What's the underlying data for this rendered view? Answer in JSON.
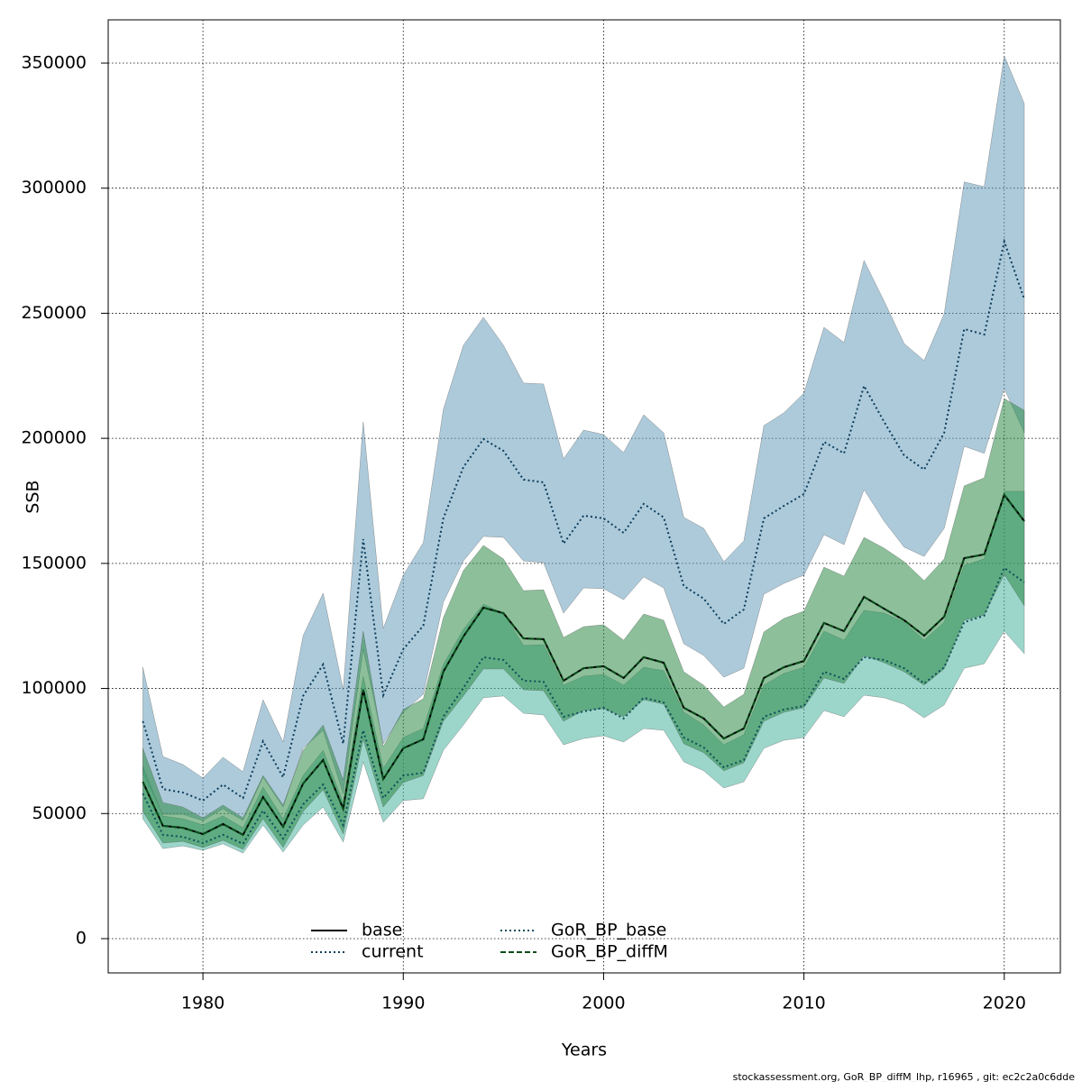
{
  "chart_data": {
    "type": "band-line",
    "x_label": "Years",
    "y_label": "SSB",
    "footer": "stockassessment.org, GoR_BP_diffM_lhp, r16965 , git: ec2c2a0c6dde",
    "x": [
      1977,
      1978,
      1979,
      1980,
      1981,
      1982,
      1983,
      1984,
      1985,
      1986,
      1987,
      1988,
      1989,
      1990,
      1991,
      1992,
      1993,
      1994,
      1995,
      1996,
      1997,
      1998,
      1999,
      2000,
      2001,
      2002,
      2003,
      2004,
      2005,
      2006,
      2007,
      2008,
      2009,
      2010,
      2011,
      2012,
      2013,
      2014,
      2015,
      2016,
      2017,
      2018,
      2019,
      2020,
      2021
    ],
    "xlim": [
      1975.27,
      2022.8
    ],
    "xticks": [
      1980,
      1990,
      2000,
      2010,
      2020
    ],
    "ylim": [
      -13700,
      367300
    ],
    "yticks": [
      0,
      50000,
      100000,
      150000,
      200000,
      250000,
      300000,
      350000
    ],
    "grid": true,
    "legend": "bottom",
    "series": [
      {
        "name": "base",
        "color": "#000000",
        "dash": "solid",
        "values": [
          62700,
          45100,
          44300,
          41800,
          45800,
          41500,
          56600,
          44700,
          62000,
          71400,
          51900,
          99500,
          63800,
          76100,
          79700,
          106700,
          120800,
          132300,
          130100,
          120000,
          119700,
          103100,
          108100,
          108900,
          104200,
          112500,
          110300,
          92300,
          88000,
          80000,
          84000,
          104200,
          108500,
          111000,
          126200,
          122900,
          136600,
          131900,
          127300,
          121100,
          128700,
          152100,
          153600,
          177400,
          166900
        ]
      },
      {
        "name": "current",
        "color": "#0b3d5c",
        "dash": "dotted",
        "band_color": "#6a9ebb",
        "values": [
          86900,
          59800,
          58400,
          55200,
          61600,
          56200,
          78900,
          64500,
          97000,
          109600,
          77900,
          159700,
          97300,
          115700,
          125100,
          168000,
          188500,
          199700,
          195000,
          183500,
          182400,
          157900,
          169100,
          168000,
          162200,
          173800,
          168400,
          141000,
          135900,
          125800,
          131600,
          168000,
          173000,
          177700,
          198600,
          194000,
          221000,
          206600,
          193200,
          187500,
          202200,
          243700,
          241500,
          278700,
          255600
        ],
        "upper": [
          108500,
          72800,
          69600,
          64200,
          72500,
          66700,
          95500,
          78600,
          121100,
          138100,
          99500,
          206600,
          124000,
          145300,
          158300,
          211600,
          237200,
          248400,
          237200,
          222100,
          221700,
          191800,
          203300,
          201500,
          194300,
          209400,
          202200,
          168400,
          164000,
          150700,
          159000,
          205100,
          210200,
          218100,
          244400,
          238300,
          271100,
          254900,
          237900,
          231100,
          249800,
          302500,
          300600,
          352900,
          333800
        ],
        "lower": [
          66000,
          49700,
          49700,
          47200,
          51900,
          47200,
          64500,
          52600,
          76100,
          83300,
          58000,
          115700,
          77900,
          90500,
          97700,
          134500,
          151000,
          160800,
          160400,
          151000,
          150300,
          130100,
          140200,
          139900,
          135500,
          144600,
          140200,
          117900,
          113200,
          104500,
          108100,
          137700,
          142000,
          145300,
          161500,
          157500,
          179500,
          166900,
          156500,
          152800,
          164000,
          196800,
          194000,
          219900,
          202200
        ]
      },
      {
        "name": "GoR_BP_base",
        "color": "#0e4f5a",
        "dash": "dotted",
        "band_color": "#4ab5a0",
        "values": [
          58000,
          41500,
          40700,
          38200,
          41500,
          37900,
          51200,
          40000,
          53700,
          61600,
          45400,
          83300,
          56200,
          65200,
          66300,
          88700,
          100200,
          112500,
          111400,
          103100,
          102700,
          88700,
          90800,
          92300,
          88000,
          96300,
          94400,
          80400,
          76400,
          68500,
          71400,
          88700,
          91600,
          93000,
          106700,
          103800,
          112500,
          111400,
          108100,
          102000,
          108500,
          126500,
          129100,
          148200,
          142400
        ],
        "upper": [
          68900,
          49000,
          47900,
          45400,
          49000,
          44300,
          60600,
          47900,
          65200,
          75300,
          54400,
          104900,
          68100,
          80400,
          84000,
          109600,
          123600,
          133700,
          130100,
          117200,
          117500,
          101300,
          104900,
          105600,
          101300,
          108500,
          107100,
          90500,
          85400,
          77500,
          81500,
          101300,
          106000,
          108500,
          122900,
          119300,
          131200,
          130100,
          126500,
          119300,
          126500,
          149200,
          151800,
          178800,
          178800
        ],
        "lower": [
          47900,
          36000,
          37100,
          35300,
          37900,
          34200,
          45400,
          34600,
          45400,
          52600,
          38600,
          70700,
          46500,
          55200,
          55900,
          75300,
          85400,
          96300,
          97000,
          90100,
          89400,
          77500,
          80000,
          81100,
          78600,
          84000,
          83300,
          70700,
          67100,
          60200,
          62700,
          76100,
          79300,
          80400,
          91200,
          88700,
          97300,
          96300,
          93700,
          88300,
          93400,
          108100,
          109900,
          122900,
          113900
        ]
      },
      {
        "name": "GoR_BP_diffM",
        "color": "#0a4d1a",
        "dash": "dashed",
        "band_color": "#2e8b47",
        "values": [
          62700,
          45100,
          44300,
          41800,
          45800,
          41500,
          56600,
          44700,
          62000,
          71400,
          51900,
          99500,
          63800,
          76100,
          79700,
          106700,
          120800,
          132300,
          130100,
          120000,
          119700,
          103100,
          108100,
          108900,
          104200,
          112500,
          110300,
          92300,
          88000,
          80000,
          84000,
          104200,
          108500,
          111000,
          126200,
          122900,
          136600,
          131900,
          127300,
          121100,
          128700,
          152100,
          153600,
          177400,
          166900
        ],
        "upper": [
          76100,
          54400,
          52600,
          48300,
          53400,
          48300,
          65200,
          53400,
          75300,
          85400,
          63400,
          122900,
          76800,
          91600,
          95900,
          128300,
          147100,
          157200,
          151800,
          139100,
          139500,
          120400,
          124700,
          125500,
          119300,
          129800,
          127300,
          106700,
          101300,
          92600,
          97700,
          122600,
          128000,
          130900,
          148500,
          144900,
          160400,
          156100,
          150700,
          143100,
          151800,
          181000,
          184200,
          215900,
          211200
        ],
        "lower": [
          50800,
          38200,
          38900,
          36400,
          39300,
          35700,
          47900,
          36400,
          50800,
          59500,
          41800,
          79700,
          52600,
          62400,
          65200,
          86900,
          97000,
          107800,
          107800,
          99500,
          99100,
          86900,
          91200,
          91900,
          88700,
          95500,
          93700,
          77900,
          74300,
          67100,
          70300,
          86900,
          90500,
          92300,
          104200,
          102000,
          113200,
          110300,
          106700,
          101300,
          107800,
          127300,
          129400,
          145600,
          133000
        ]
      }
    ]
  }
}
